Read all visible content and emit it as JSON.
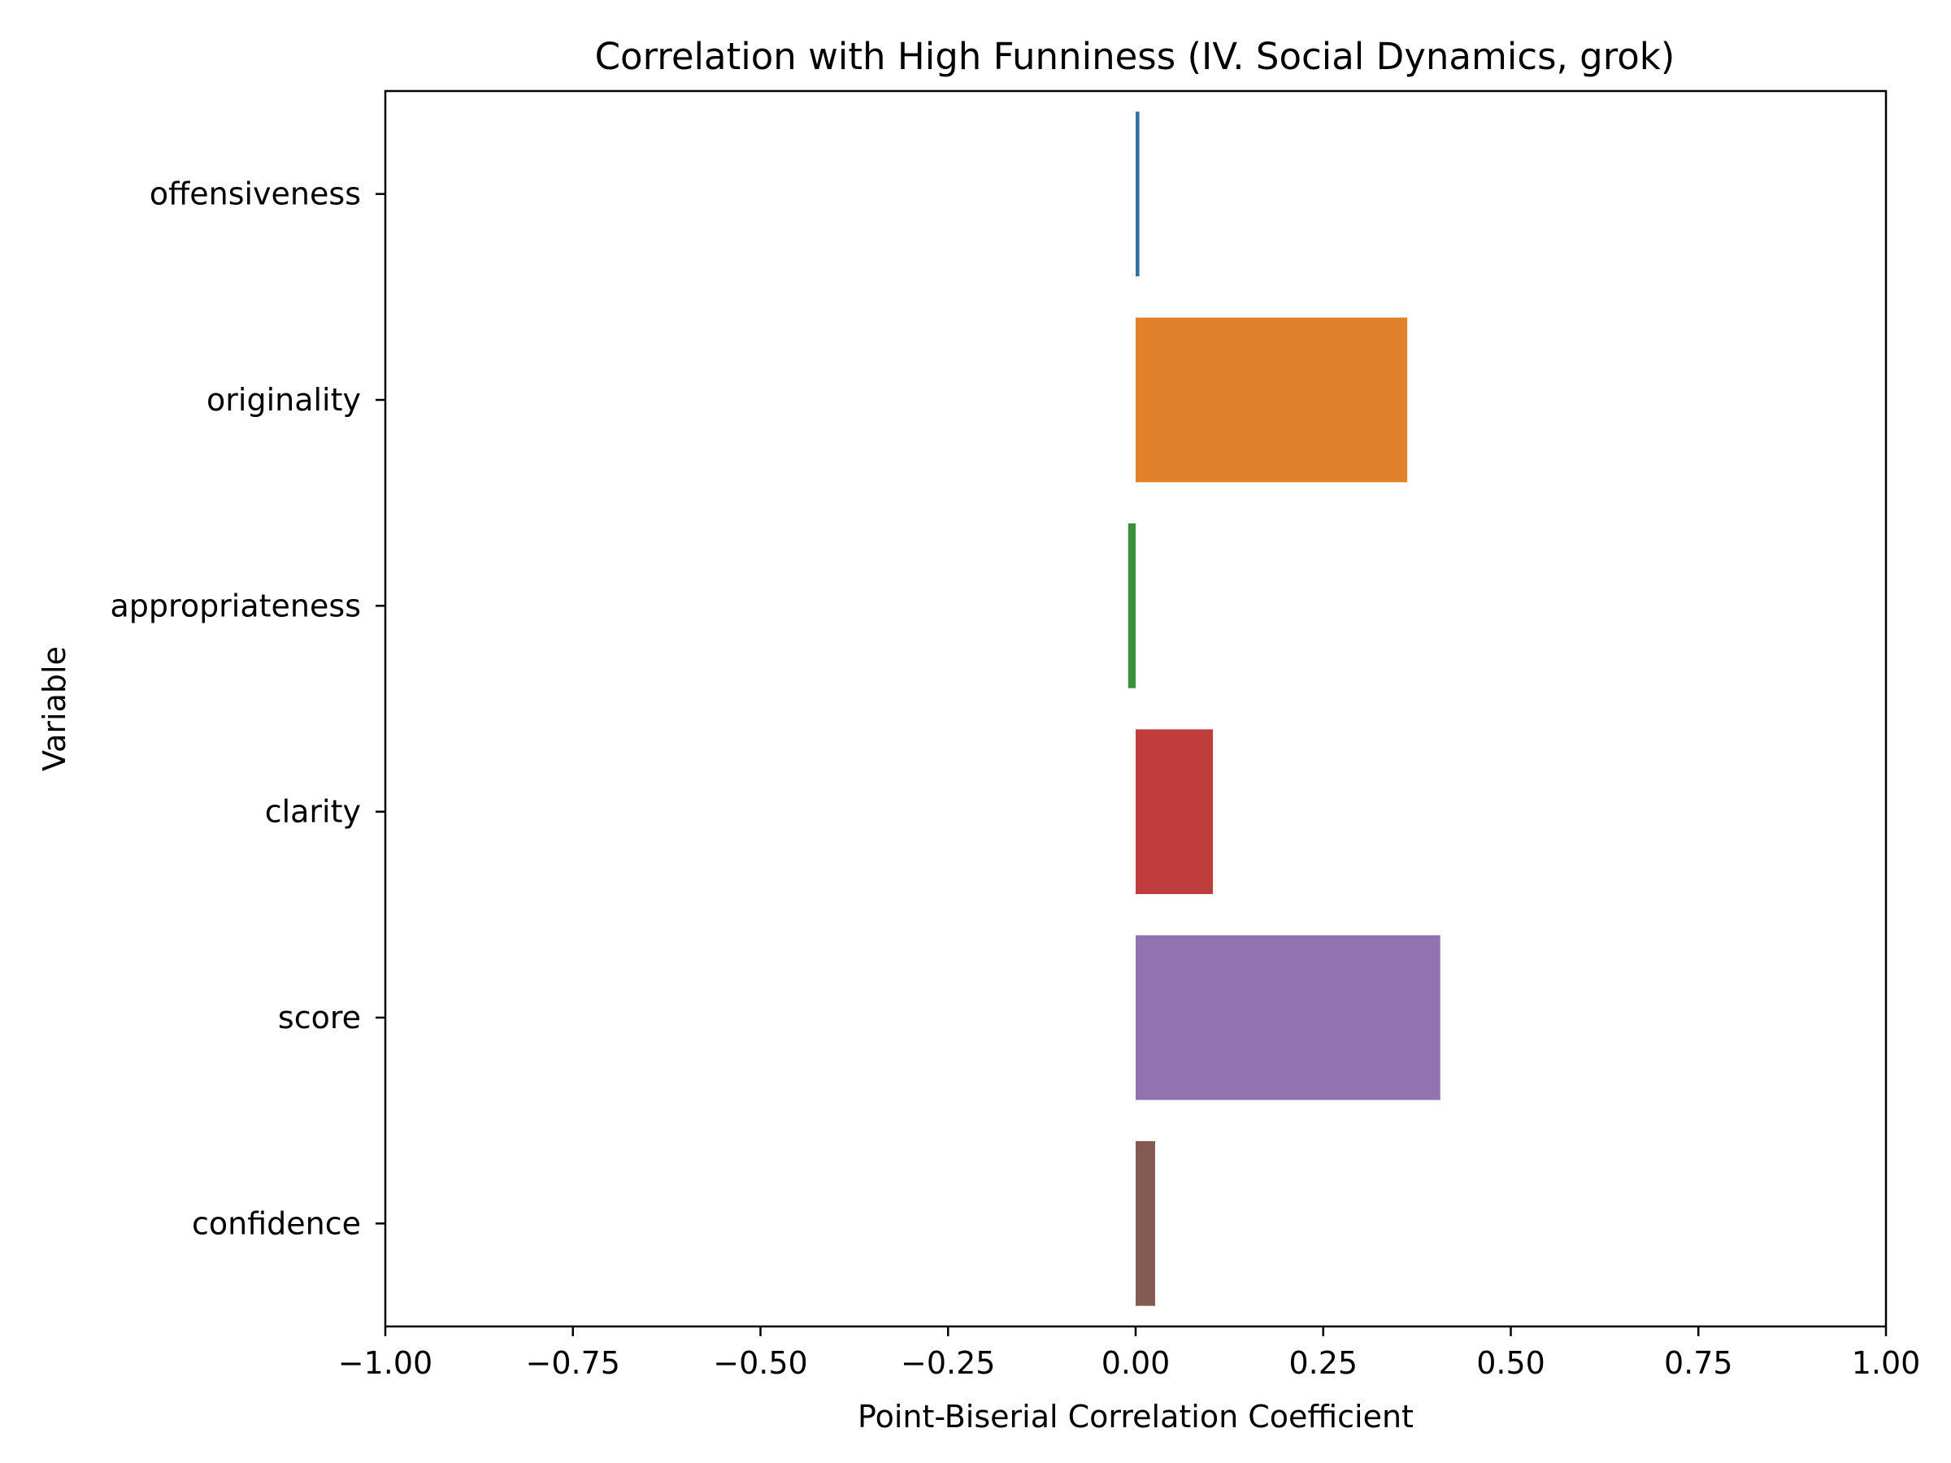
{
  "chart_data": {
    "type": "bar",
    "orientation": "horizontal",
    "title": "Correlation with High Funniness (IV. Social Dynamics, grok)",
    "xlabel": "Point-Biserial Correlation Coefficient",
    "ylabel": "Variable",
    "xlim": [
      -1.0,
      1.0
    ],
    "x_ticks": [
      -1.0,
      -0.75,
      -0.5,
      -0.25,
      0.0,
      0.25,
      0.5,
      0.75,
      1.0
    ],
    "x_tick_labels": [
      "−1.00",
      "−0.75",
      "−0.50",
      "−0.25",
      "0.00",
      "0.25",
      "0.50",
      "0.75",
      "1.00"
    ],
    "categories": [
      "offensiveness",
      "originality",
      "appropriateness",
      "clarity",
      "score",
      "confidence"
    ],
    "values": [
      0.005,
      0.362,
      -0.01,
      0.103,
      0.406,
      0.026
    ],
    "colors": [
      "#3274a1",
      "#e1812c",
      "#3a923a",
      "#c03d3e",
      "#9372b2",
      "#845b53"
    ],
    "grid": false,
    "legend": "none"
  }
}
